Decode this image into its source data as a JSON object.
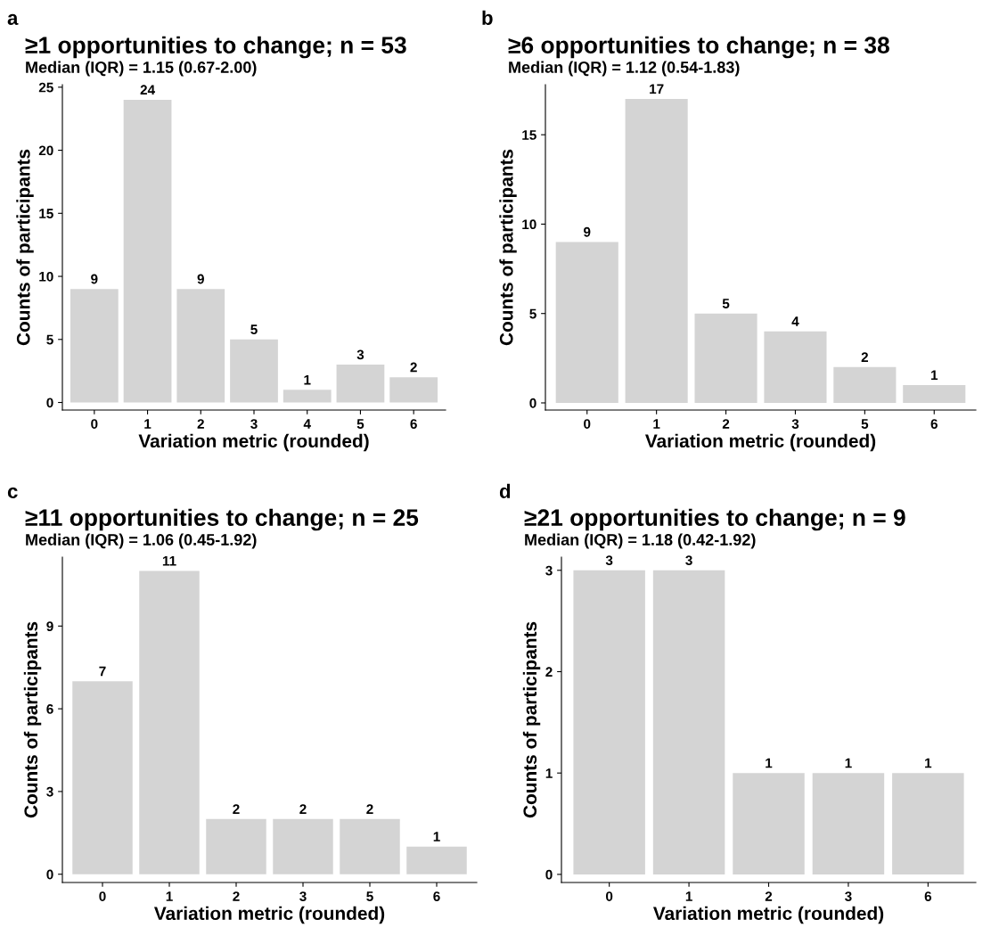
{
  "chart_data": [
    {
      "type": "bar",
      "title": "≥1 opportunities to change; n = 53",
      "subtitle": "Median (IQR) = 1.15 (0.67-2.00)",
      "xlabel": "Variation metric (rounded)",
      "ylabel": "Counts of participants",
      "annotations": [
        "a"
      ],
      "categories": [
        "0",
        "1",
        "2",
        "3",
        "4",
        "5",
        "6"
      ],
      "values": [
        9,
        24,
        9,
        5,
        1,
        3,
        2
      ],
      "color": "#d4d4d4",
      "ylim": [
        -0.6,
        25.2
      ],
      "yticks": [
        0,
        5,
        10,
        15,
        20,
        25
      ],
      "data_labels": true,
      "grid": false,
      "legend": false
    },
    {
      "type": "bar",
      "title": "≥6 opportunities to change; n = 38",
      "subtitle": "Median (IQR) = 1.12 (0.54-1.83)",
      "xlabel": "Variation metric (rounded)",
      "ylabel": "Counts of participants",
      "annotations": [
        "b"
      ],
      "categories": [
        "0",
        "1",
        "2",
        "3",
        "5",
        "6"
      ],
      "values": [
        9,
        17,
        5,
        4,
        2,
        1
      ],
      "color": "#d4d4d4",
      "ylim": [
        -0.4,
        17.8
      ],
      "yticks": [
        0,
        5,
        10,
        15
      ],
      "data_labels": true,
      "grid": false,
      "legend": false
    },
    {
      "type": "bar",
      "title": "≥11 opportunities to change; n = 25",
      "subtitle": "Median (IQR) = 1.06 (0.45-1.92)",
      "xlabel": "Variation metric (rounded)",
      "ylabel": "Counts of participants",
      "annotations": [
        "c"
      ],
      "categories": [
        "0",
        "1",
        "2",
        "3",
        "5",
        "6"
      ],
      "values": [
        7,
        11,
        2,
        2,
        2,
        1
      ],
      "color": "#d4d4d4",
      "ylim": [
        -0.3,
        11.5
      ],
      "yticks": [
        0,
        3,
        6,
        9
      ],
      "data_labels": true,
      "grid": false,
      "legend": false
    },
    {
      "type": "bar",
      "title": "≥21 opportunities to change; n = 9",
      "subtitle": "Median (IQR) = 1.18 (0.42-1.92)",
      "xlabel": "Variation metric (rounded)",
      "ylabel": "Counts of participants",
      "annotations": [
        "d"
      ],
      "categories": [
        "0",
        "1",
        "2",
        "3",
        "6"
      ],
      "values": [
        3,
        3,
        1,
        1,
        1
      ],
      "color": "#d4d4d4",
      "ylim": [
        -0.08,
        3.13
      ],
      "yticks": [
        0,
        1,
        2,
        3
      ],
      "data_labels": true,
      "grid": false,
      "legend": false
    }
  ]
}
